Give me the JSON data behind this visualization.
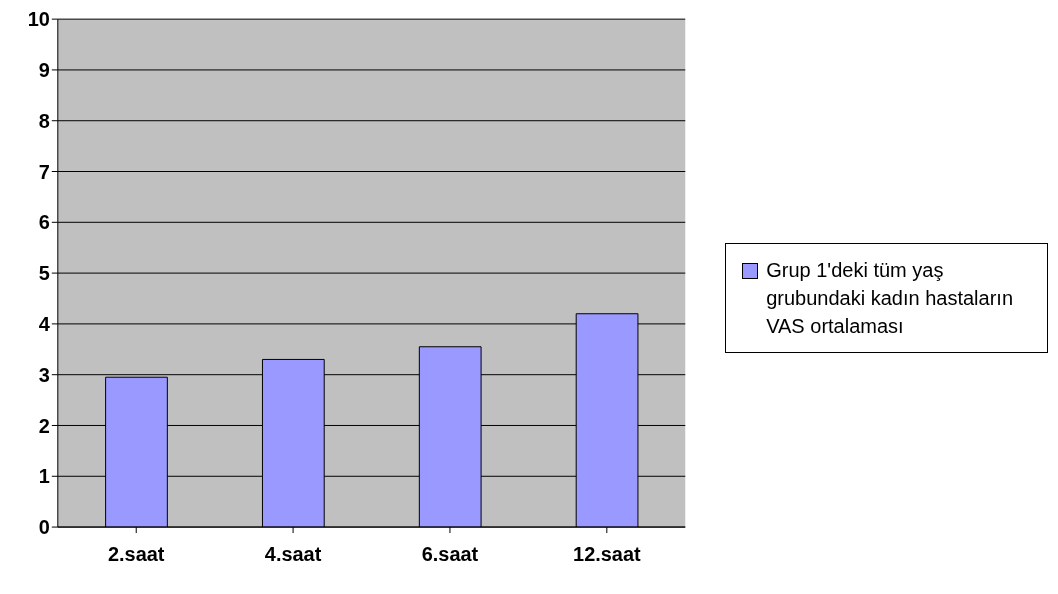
{
  "chart_data": {
    "type": "bar",
    "categories": [
      "2.saat",
      "4.saat",
      "6.saat",
      "12.saat"
    ],
    "series": [
      {
        "name": "Grup 1'deki tüm yaş grubundaki kadın hastaların VAS ortalaması",
        "color": "#9999ff",
        "values": [
          2.95,
          3.3,
          3.55,
          4.2
        ]
      }
    ],
    "ylim": [
      0,
      10
    ],
    "yticks": [
      0,
      1,
      2,
      3,
      4,
      5,
      6,
      7,
      8,
      9,
      10
    ],
    "grid": "y",
    "legend": "right"
  }
}
